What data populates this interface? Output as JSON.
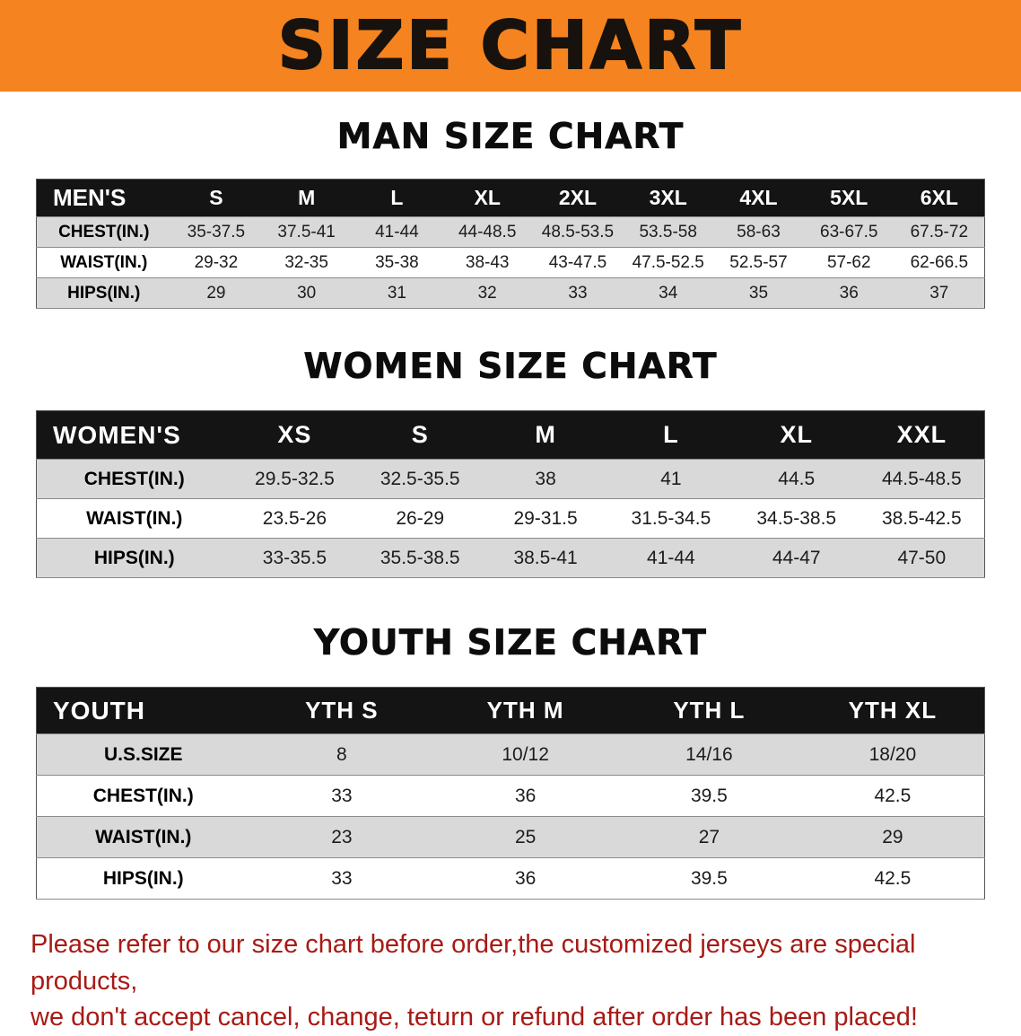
{
  "banner": {
    "title": "SIZE CHART",
    "bg_color": "#f5831f"
  },
  "sections": [
    {
      "heading": "MAN SIZE CHART",
      "table": {
        "header": [
          "MEN'S",
          "S",
          "M",
          "L",
          "XL",
          "2XL",
          "3XL",
          "4XL",
          "5XL",
          "6XL"
        ],
        "rows": [
          [
            "CHEST(IN.)",
            "35-37.5",
            "37.5-41",
            "41-44",
            "44-48.5",
            "48.5-53.5",
            "53.5-58",
            "58-63",
            "63-67.5",
            "67.5-72"
          ],
          [
            "WAIST(IN.)",
            "29-32",
            "32-35",
            "35-38",
            "38-43",
            "43-47.5",
            "47.5-52.5",
            "52.5-57",
            "57-62",
            "62-66.5"
          ],
          [
            "HIPS(IN.)",
            "29",
            "30",
            "31",
            "32",
            "33",
            "34",
            "35",
            "36",
            "37"
          ]
        ]
      }
    },
    {
      "heading": "WOMEN SIZE CHART",
      "table": {
        "header": [
          "WOMEN'S",
          "XS",
          "S",
          "M",
          "L",
          "XL",
          "XXL"
        ],
        "rows": [
          [
            "CHEST(IN.)",
            "29.5-32.5",
            "32.5-35.5",
            "38",
            "41",
            "44.5",
            "44.5-48.5"
          ],
          [
            "WAIST(IN.)",
            "23.5-26",
            "26-29",
            "29-31.5",
            "31.5-34.5",
            "34.5-38.5",
            "38.5-42.5"
          ],
          [
            "HIPS(IN.)",
            "33-35.5",
            "35.5-38.5",
            "38.5-41",
            "41-44",
            "44-47",
            "47-50"
          ]
        ]
      }
    },
    {
      "heading": "YOUTH SIZE CHART",
      "table": {
        "header": [
          "YOUTH",
          "YTH S",
          "YTH M",
          "YTH L",
          "YTH XL"
        ],
        "rows": [
          [
            "U.S.SIZE",
            "8",
            "10/12",
            "14/16",
            "18/20"
          ],
          [
            "CHEST(IN.)",
            "33",
            "36",
            "39.5",
            "42.5"
          ],
          [
            "WAIST(IN.)",
            "23",
            "25",
            "27",
            "29"
          ],
          [
            "HIPS(IN.)",
            "33",
            "36",
            "39.5",
            "42.5"
          ]
        ]
      }
    }
  ],
  "disclaimer": {
    "line1": "Please refer to our size chart before order,the customized jerseys are special products,",
    "line2": "we don't accept cancel, change, teturn or refund after order has been placed!",
    "color": "#a81a15"
  }
}
